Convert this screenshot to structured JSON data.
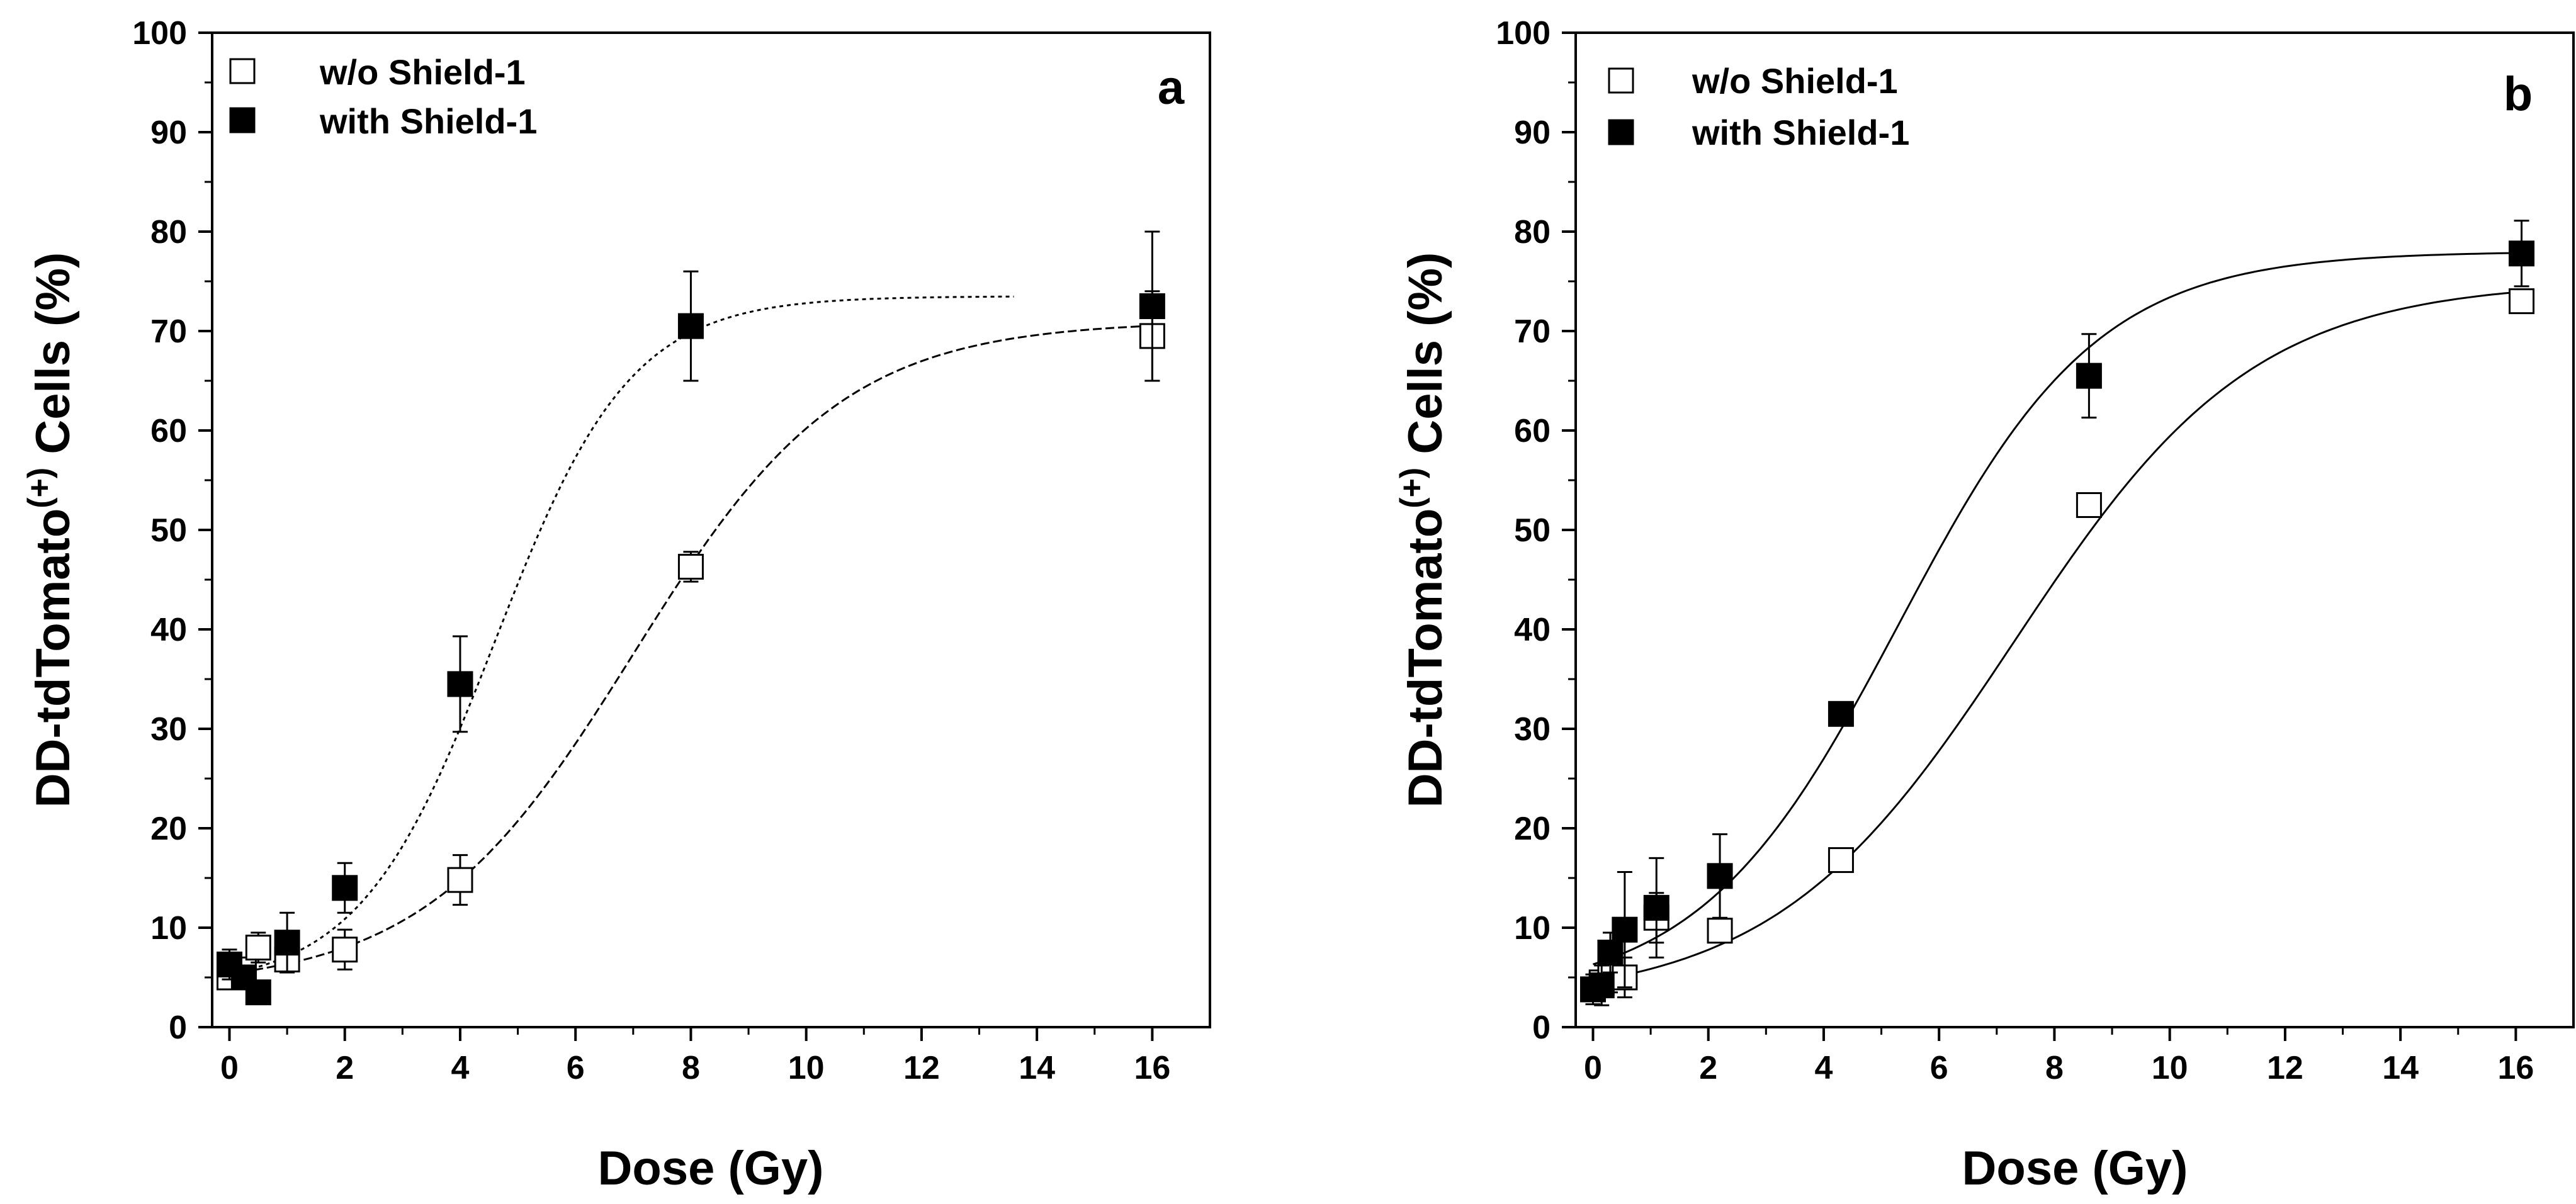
{
  "chart_data": [
    {
      "type": "scatter",
      "panel_label": "a",
      "xlabel": "Dose (Gy)",
      "ylabel_main": "DD-tdTomato",
      "ylabel_sup": "(+)",
      "ylabel_tail": " Cells (%)",
      "xlim": [
        -0.3,
        17
      ],
      "ylim": [
        0,
        100
      ],
      "x_ticks": [
        0,
        2,
        4,
        6,
        8,
        10,
        12,
        14,
        16
      ],
      "y_ticks": [
        0,
        10,
        20,
        30,
        40,
        50,
        60,
        70,
        80,
        90,
        100
      ],
      "legend_position": "top-left",
      "series": [
        {
          "name": "w/o Shield-1",
          "marker": "open-square",
          "points": [
            {
              "x": 0,
              "y": 5,
              "err": 1
            },
            {
              "x": 0.25,
              "y": 5.8,
              "err": 1
            },
            {
              "x": 0.5,
              "y": 8,
              "err": 1.5
            },
            {
              "x": 1,
              "y": 6.8,
              "err": 1
            },
            {
              "x": 2,
              "y": 7.8,
              "err": 2
            },
            {
              "x": 4,
              "y": 14.8,
              "err": 2.5
            },
            {
              "x": 8,
              "y": 46.3,
              "err": 1.5
            },
            {
              "x": 16,
              "y": 69.5,
              "err": 4.5
            }
          ],
          "fit": {
            "bottom": 4,
            "top": 71,
            "x50": 7,
            "slope": 0.55,
            "x_end": 16,
            "dash": "14 6"
          }
        },
        {
          "name": "with Shield-1",
          "marker": "filled-square",
          "points": [
            {
              "x": 0,
              "y": 6.3,
              "err": 1.5
            },
            {
              "x": 0.25,
              "y": 5,
              "err": 1
            },
            {
              "x": 0.5,
              "y": 3.5,
              "err": 1
            },
            {
              "x": 1,
              "y": 8.5,
              "err": 3
            },
            {
              "x": 2,
              "y": 14,
              "err": 2.5
            },
            {
              "x": 4,
              "y": 34.5,
              "err": 4.8
            },
            {
              "x": 8,
              "y": 70.5,
              "err": 5.5
            },
            {
              "x": 16,
              "y": 72.5,
              "err": 7.5
            }
          ],
          "fit": {
            "bottom": 4,
            "top": 73.5,
            "x50": 4.6,
            "slope": 0.85,
            "x_end": 13.6,
            "dash": "6 6"
          }
        }
      ]
    },
    {
      "type": "scatter",
      "panel_label": "b",
      "xlabel": "Dose (Gy)",
      "ylabel_main": "DD-tdTomato",
      "ylabel_sup": "(+)",
      "ylabel_tail": " Cells (%)",
      "xlim": [
        -0.3,
        17
      ],
      "ylim": [
        0,
        100
      ],
      "x_ticks": [
        0,
        2,
        4,
        6,
        8,
        10,
        12,
        14,
        16
      ],
      "y_ticks": [
        0,
        10,
        20,
        30,
        40,
        50,
        60,
        70,
        80,
        90,
        100
      ],
      "legend_position": "top-left",
      "series": [
        {
          "name": "w/o Shield-1",
          "marker": "open-square",
          "points": [
            {
              "x": 0,
              "y": 3.8,
              "err": 0.8
            },
            {
              "x": 0.15,
              "y": 4.5,
              "err": 1
            },
            {
              "x": 0.3,
              "y": 5.5,
              "err": 2
            },
            {
              "x": 0.55,
              "y": 5,
              "err": 2
            },
            {
              "x": 1.1,
              "y": 11,
              "err": 2.5
            },
            {
              "x": 2.2,
              "y": 9.7,
              "err": 1
            },
            {
              "x": 4.3,
              "y": 16.8,
              "err": 0.5
            },
            {
              "x": 8.6,
              "y": 52.5,
              "err": 1
            },
            {
              "x": 16.1,
              "y": 73,
              "err": 1
            }
          ],
          "fit": {
            "bottom": 2.5,
            "top": 75,
            "x50": 7.3,
            "slope": 0.48,
            "x_end": 16,
            "dash": ""
          }
        },
        {
          "name": "with Shield-1",
          "marker": "filled-square",
          "points": [
            {
              "x": 0,
              "y": 3.8,
              "err": 1.5
            },
            {
              "x": 0.15,
              "y": 4.2,
              "err": 2
            },
            {
              "x": 0.3,
              "y": 7.5,
              "err": 2
            },
            {
              "x": 0.55,
              "y": 9.8,
              "err": 5.8
            },
            {
              "x": 1.1,
              "y": 12,
              "err": 5
            },
            {
              "x": 2.2,
              "y": 15.2,
              "err": 4.2
            },
            {
              "x": 4.3,
              "y": 31.5,
              "err": 0.8
            },
            {
              "x": 8.6,
              "y": 65.5,
              "err": 4.2
            },
            {
              "x": 16.1,
              "y": 77.8,
              "err": 3.3
            }
          ],
          "fit": {
            "bottom": 3,
            "top": 78,
            "x50": 5.3,
            "slope": 0.58,
            "x_end": 16,
            "dash": ""
          }
        }
      ]
    }
  ]
}
